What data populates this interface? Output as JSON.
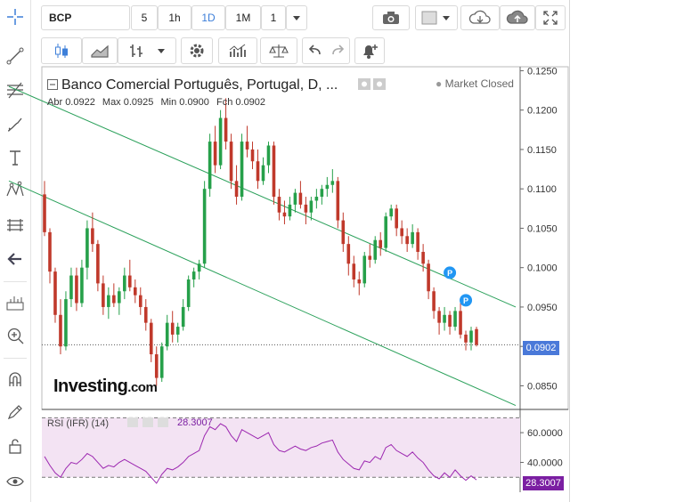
{
  "toolbar": {
    "symbol": "BCP",
    "intervals": [
      "5",
      "1h",
      "1D",
      "1M",
      "1"
    ],
    "active_interval": "1D"
  },
  "chart": {
    "title": "Banco Comercial Português, Portugal, D, ...",
    "status": "Market Closed",
    "ohlc": {
      "open_label": "Abr",
      "open": "0.0922",
      "high_label": "Max",
      "high": "0.0925",
      "low_label": "Min",
      "low": "0.0900",
      "close_label": "Fch",
      "close": "0.0902"
    },
    "price_axis": [
      "0.1250",
      "0.1200",
      "0.1150",
      "0.1100",
      "0.1050",
      "0.1000",
      "0.0950",
      "0.0900",
      "0.0850"
    ],
    "last_price": "0.0902",
    "logo_text": "Investing",
    "logo_suffix": ".com",
    "marker_label": "P"
  },
  "rsi": {
    "title": "RSI (IFR) (14)",
    "value": "28.3007",
    "axis": [
      "60.0000",
      "40.0000"
    ],
    "last_value": "28.3007"
  },
  "colors": {
    "up": "#26a04a",
    "down": "#c0392b",
    "channel": "#2aa05a",
    "rsi_line": "#9c27b0",
    "rsi_band": "#f3e3f3",
    "accent": "#3d7fd9"
  },
  "chart_data": {
    "type": "candlestick",
    "series": [
      {
        "name": "BCP",
        "candles": [
          [
            0.1093,
            0.111,
            0.104,
            0.1045
          ],
          [
            0.1045,
            0.105,
            0.098,
            0.0995
          ],
          [
            0.0995,
            0.1,
            0.093,
            0.094
          ],
          [
            0.094,
            0.096,
            0.089,
            0.09
          ],
          [
            0.09,
            0.097,
            0.0895,
            0.096
          ],
          [
            0.096,
            0.1,
            0.095,
            0.099
          ],
          [
            0.099,
            0.1,
            0.0945,
            0.0955
          ],
          [
            0.0955,
            0.101,
            0.095,
            0.1
          ],
          [
            0.1,
            0.106,
            0.0985,
            0.105
          ],
          [
            0.105,
            0.107,
            0.102,
            0.103
          ],
          [
            0.103,
            0.1035,
            0.097,
            0.098
          ],
          [
            0.098,
            0.099,
            0.094,
            0.095
          ],
          [
            0.095,
            0.0975,
            0.0935,
            0.0965
          ],
          [
            0.0965,
            0.098,
            0.095,
            0.0955
          ],
          [
            0.0955,
            0.0975,
            0.094,
            0.097
          ],
          [
            0.097,
            0.1,
            0.096,
            0.099
          ],
          [
            0.099,
            0.101,
            0.097,
            0.0975
          ],
          [
            0.0975,
            0.0985,
            0.0955,
            0.0965
          ],
          [
            0.0965,
            0.0975,
            0.094,
            0.095
          ],
          [
            0.095,
            0.096,
            0.092,
            0.093
          ],
          [
            0.093,
            0.0935,
            0.088,
            0.089
          ],
          [
            0.089,
            0.09,
            0.085,
            0.086
          ],
          [
            0.086,
            0.0905,
            0.0855,
            0.09
          ],
          [
            0.09,
            0.094,
            0.0895,
            0.093
          ],
          [
            0.093,
            0.0945,
            0.0905,
            0.0915
          ],
          [
            0.0915,
            0.093,
            0.0905,
            0.0925
          ],
          [
            0.0925,
            0.096,
            0.092,
            0.095
          ],
          [
            0.095,
            0.099,
            0.0945,
            0.0985
          ],
          [
            0.0985,
            0.1,
            0.0975,
            0.0995
          ],
          [
            0.0995,
            0.101,
            0.0985,
            0.1005
          ],
          [
            0.1005,
            0.111,
            0.1,
            0.11
          ],
          [
            0.11,
            0.117,
            0.109,
            0.116
          ],
          [
            0.116,
            0.118,
            0.112,
            0.113
          ],
          [
            0.113,
            0.12,
            0.1125,
            0.119
          ],
          [
            0.119,
            0.1215,
            0.115,
            0.116
          ],
          [
            0.116,
            0.117,
            0.11,
            0.111
          ],
          [
            0.111,
            0.113,
            0.108,
            0.109
          ],
          [
            0.109,
            0.117,
            0.1085,
            0.116
          ],
          [
            0.116,
            0.118,
            0.114,
            0.115
          ],
          [
            0.115,
            0.116,
            0.1125,
            0.1135
          ],
          [
            0.1135,
            0.115,
            0.11,
            0.111
          ],
          [
            0.111,
            0.114,
            0.1105,
            0.113
          ],
          [
            0.113,
            0.116,
            0.112,
            0.1155
          ],
          [
            0.1155,
            0.116,
            0.108,
            0.109
          ],
          [
            0.109,
            0.11,
            0.106,
            0.107
          ],
          [
            0.107,
            0.1085,
            0.1055,
            0.1065
          ],
          [
            0.1065,
            0.109,
            0.106,
            0.108
          ],
          [
            0.108,
            0.11,
            0.107,
            0.1095
          ],
          [
            0.1095,
            0.111,
            0.1075,
            0.108
          ],
          [
            0.108,
            0.109,
            0.1055,
            0.107
          ],
          [
            0.107,
            0.109,
            0.106,
            0.1085
          ],
          [
            0.1085,
            0.11,
            0.1075,
            0.109
          ],
          [
            0.109,
            0.1105,
            0.108,
            0.11
          ],
          [
            0.11,
            0.1115,
            0.109,
            0.1105
          ],
          [
            0.1105,
            0.1125,
            0.1095,
            0.111
          ],
          [
            0.111,
            0.1115,
            0.105,
            0.106
          ],
          [
            0.106,
            0.107,
            0.102,
            0.103
          ],
          [
            0.103,
            0.104,
            0.099,
            0.1005
          ],
          [
            0.1005,
            0.1015,
            0.0975,
            0.0985
          ],
          [
            0.0985,
            0.0995,
            0.0965,
            0.098
          ],
          [
            0.098,
            0.102,
            0.0975,
            0.1015
          ],
          [
            0.1015,
            0.103,
            0.1,
            0.101
          ],
          [
            0.101,
            0.104,
            0.1005,
            0.1035
          ],
          [
            0.1035,
            0.1045,
            0.1015,
            0.1025
          ],
          [
            0.1025,
            0.107,
            0.102,
            0.1065
          ],
          [
            0.1065,
            0.108,
            0.106,
            0.1075
          ],
          [
            0.1075,
            0.108,
            0.104,
            0.105
          ],
          [
            0.105,
            0.106,
            0.103,
            0.104
          ],
          [
            0.104,
            0.105,
            0.102,
            0.103
          ],
          [
            0.103,
            0.1055,
            0.1025,
            0.1045
          ],
          [
            0.1045,
            0.105,
            0.101,
            0.102
          ],
          [
            0.102,
            0.103,
            0.0995,
            0.1005
          ],
          [
            0.1005,
            0.101,
            0.096,
            0.097
          ],
          [
            0.097,
            0.0975,
            0.0935,
            0.0945
          ],
          [
            0.0945,
            0.095,
            0.0915,
            0.093
          ],
          [
            0.093,
            0.095,
            0.092,
            0.094
          ],
          [
            0.094,
            0.0945,
            0.0915,
            0.0925
          ],
          [
            0.0925,
            0.095,
            0.092,
            0.0945
          ],
          [
            0.0945,
            0.0955,
            0.091,
            0.0915
          ],
          [
            0.0915,
            0.092,
            0.0895,
            0.0905
          ],
          [
            0.0905,
            0.0925,
            0.0895,
            0.092
          ],
          [
            0.0922,
            0.0925,
            0.09,
            0.0902
          ]
        ]
      }
    ],
    "channel_lines": [
      {
        "from": [
          0,
          0.123
        ],
        "to": [
          80,
          0.095
        ]
      },
      {
        "from": [
          0,
          0.111
        ],
        "to": [
          80,
          0.0825
        ]
      }
    ],
    "price_range": [
      0.082,
      0.1255
    ],
    "last_price": 0.0902,
    "markers": [
      {
        "index": 75,
        "price": 0.098,
        "label": "P"
      },
      {
        "index": 78,
        "price": 0.0945,
        "label": "P"
      }
    ],
    "rsi": {
      "name": "RSI (IFR) (14)",
      "values": [
        44,
        38,
        33,
        30,
        36,
        40,
        39,
        42,
        46,
        44,
        40,
        36,
        38,
        37,
        40,
        42,
        40,
        38,
        36,
        34,
        30,
        26,
        32,
        36,
        35,
        37,
        40,
        44,
        46,
        48,
        58,
        64,
        62,
        66,
        64,
        58,
        54,
        62,
        60,
        58,
        56,
        58,
        60,
        52,
        48,
        47,
        49,
        51,
        49,
        48,
        50,
        51,
        53,
        54,
        55,
        47,
        42,
        39,
        36,
        35,
        41,
        40,
        44,
        42,
        50,
        52,
        48,
        46,
        44,
        47,
        43,
        40,
        35,
        31,
        29,
        33,
        30,
        35,
        31,
        28,
        31,
        28.3
      ],
      "range": [
        20,
        75
      ],
      "levels": [
        70,
        30
      ]
    }
  }
}
